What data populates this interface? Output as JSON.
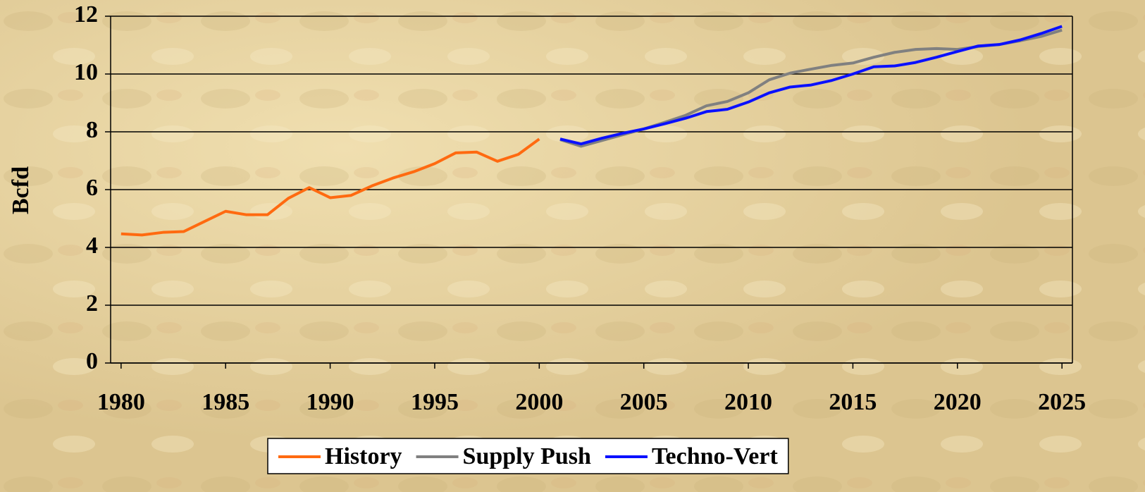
{
  "chart_data": {
    "type": "line",
    "y_label": "Bcfd",
    "x": [
      1980,
      1981,
      1982,
      1983,
      1984,
      1985,
      1986,
      1987,
      1988,
      1989,
      1990,
      1991,
      1992,
      1993,
      1994,
      1995,
      1996,
      1997,
      1998,
      1999,
      2000,
      2001,
      2002,
      2003,
      2004,
      2005,
      2006,
      2007,
      2008,
      2009,
      2010,
      2011,
      2012,
      2013,
      2014,
      2015,
      2016,
      2017,
      2018,
      2019,
      2020,
      2021,
      2022,
      2023,
      2024,
      2025
    ],
    "xlim": [
      1979.5,
      2025.5
    ],
    "xticks": [
      1980,
      1985,
      1990,
      1995,
      2000,
      2005,
      2010,
      2015,
      2020,
      2025
    ],
    "ylim": [
      0,
      12
    ],
    "yticks": [
      0,
      2,
      4,
      6,
      8,
      10,
      12
    ],
    "grid": true,
    "legend": "bottom",
    "series": [
      {
        "name": "History",
        "color": "#ff6a10",
        "values": [
          4.47,
          4.43,
          4.52,
          4.55,
          4.9,
          5.25,
          5.13,
          5.13,
          5.7,
          6.07,
          5.72,
          5.8,
          6.13,
          6.4,
          6.62,
          6.9,
          7.27,
          7.3,
          6.98,
          7.22,
          7.75,
          null,
          null,
          null,
          null,
          null,
          null,
          null,
          null,
          null,
          null,
          null,
          null,
          null,
          null,
          null,
          null,
          null,
          null,
          null,
          null,
          null,
          null,
          null,
          null,
          null
        ]
      },
      {
        "name": "Supply Push",
        "color": "#808080",
        "values": [
          null,
          null,
          null,
          null,
          null,
          null,
          null,
          null,
          null,
          null,
          null,
          null,
          null,
          null,
          null,
          null,
          null,
          null,
          null,
          null,
          null,
          7.73,
          7.5,
          7.7,
          7.9,
          8.1,
          8.33,
          8.57,
          8.9,
          9.05,
          9.35,
          9.8,
          10.03,
          10.17,
          10.3,
          10.38,
          10.58,
          10.75,
          10.85,
          10.88,
          10.85,
          10.95,
          11.02,
          11.15,
          11.3,
          11.52
        ]
      },
      {
        "name": "Techno-Vert",
        "color": "#0a10ff",
        "values": [
          null,
          null,
          null,
          null,
          null,
          null,
          null,
          null,
          null,
          null,
          null,
          null,
          null,
          null,
          null,
          null,
          null,
          null,
          null,
          null,
          null,
          7.75,
          7.58,
          7.78,
          7.95,
          8.1,
          8.28,
          8.47,
          8.7,
          8.78,
          9.03,
          9.35,
          9.55,
          9.62,
          9.78,
          10.0,
          10.25,
          10.28,
          10.4,
          10.58,
          10.78,
          10.97,
          11.02,
          11.18,
          11.4,
          11.65
        ]
      }
    ]
  }
}
